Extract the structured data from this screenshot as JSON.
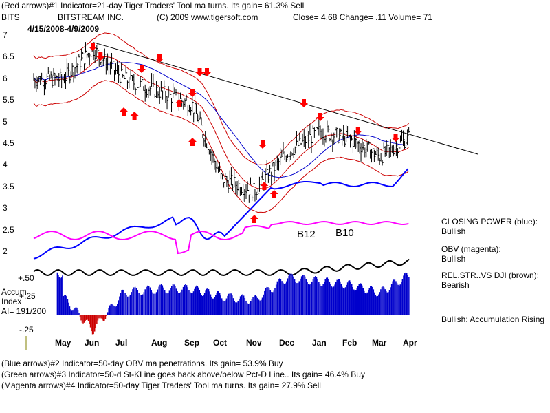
{
  "header": {
    "line1": "(Red arrows)#1 Indicator=21-day Tiger Traders' Tool ma turns. Its gain= 61.3% Sell",
    "ticker": "BITS",
    "company": "BITSTREAM INC.",
    "copyright": "(C) 2009 www.tigersoft.com",
    "close": "Close=  4.68  Change= .11 Volume= 71",
    "daterange": "4/15/2008-4/9/2009"
  },
  "footer": {
    "line1": "(Blue arrows)#2 Indicator=50-day OBV ma penetrations. Its gain= 53.9% Buy",
    "line2": "(Green arrows)#3 Indicator=50-d St-KLine goes back above/below Pct-D Line.. Its gain= 46.4% Buy",
    "line3": "(Magenta arrows)#4 Indicator=50-day Tiger Traders' Tool ma turns. Its gain= 27.9% Sell"
  },
  "side": {
    "closing_power_label": "CLOSING POWER (blue):",
    "closing_power_value": "Bullish",
    "obv_label": "OBV (magenta):",
    "obv_value": "Bullish",
    "relstr_label": "REL.STR..VS DJI (brown):",
    "relstr_value": "Bearish",
    "accum_summary": "Bullish: Accumulation Rising"
  },
  "accum_panel": {
    "title1": "Accum",
    "title2": "Index",
    "ai": "AI= 191/200",
    "tick_plus50": "+.50",
    "tick_plus25": "+.25",
    "tick_minus25": "-.25"
  },
  "signals": {
    "b12": "B12",
    "b10": "B10"
  },
  "colors": {
    "price_bars": "#000000",
    "closing_power": "#0000ff",
    "obv": "#ff00ff",
    "relstr": "#000000",
    "bands": "#cc0000",
    "ma50": "#0000cc",
    "accum_pos": "#0000cc",
    "accum_neg": "#cc0000",
    "arrow": "#ff0000"
  },
  "chart_data": {
    "type": "line",
    "y_axis": {
      "ticks": [
        "7",
        "6.5",
        "6",
        "5.5",
        "5",
        "4.5",
        "4",
        "3.5",
        "3",
        "2.5",
        "2"
      ],
      "range": [
        2,
        7
      ]
    },
    "x_axis": {
      "ticks": [
        "May",
        "Jun",
        "Jul",
        "Aug",
        "Sep",
        "Oct",
        "Nov",
        "Dec",
        "Jan",
        "Feb",
        "Mar",
        "Apr"
      ]
    },
    "price_close_approx": [
      [
        "May",
        6.0
      ],
      [
        "Jun",
        6.7
      ],
      [
        "Jul",
        6.0
      ],
      [
        "Aug",
        5.7
      ],
      [
        "Sep",
        5.4
      ],
      [
        "Oct",
        3.7
      ],
      [
        "Nov",
        3.4
      ],
      [
        "Dec",
        4.3
      ],
      [
        "Jan",
        4.8
      ],
      [
        "Feb",
        4.6
      ],
      [
        "Mar",
        4.2
      ],
      [
        "Apr",
        4.68
      ]
    ],
    "sell_arrows_months": [
      "Jun",
      "Jun",
      "Jul",
      "Aug",
      "Sep",
      "Sep",
      "Sep",
      "Nov",
      "Dec",
      "Jan",
      "Feb",
      "Mar"
    ],
    "buy_arrows_months": [
      "Jul",
      "Jul",
      "Aug",
      "Sep",
      "Nov",
      "Nov",
      "Nov"
    ],
    "accum_index_approx": [
      [
        "May",
        0.25
      ],
      [
        "Jun",
        -0.2
      ],
      [
        "Jul",
        0.3
      ],
      [
        "Aug",
        0.35
      ],
      [
        "Sep",
        0.35
      ],
      [
        "Oct",
        0.25
      ],
      [
        "Nov",
        0.2
      ],
      [
        "Dec",
        0.5
      ],
      [
        "Jan",
        0.45
      ],
      [
        "Feb",
        0.4
      ],
      [
        "Mar",
        0.3
      ],
      [
        "Apr",
        0.55
      ]
    ]
  }
}
